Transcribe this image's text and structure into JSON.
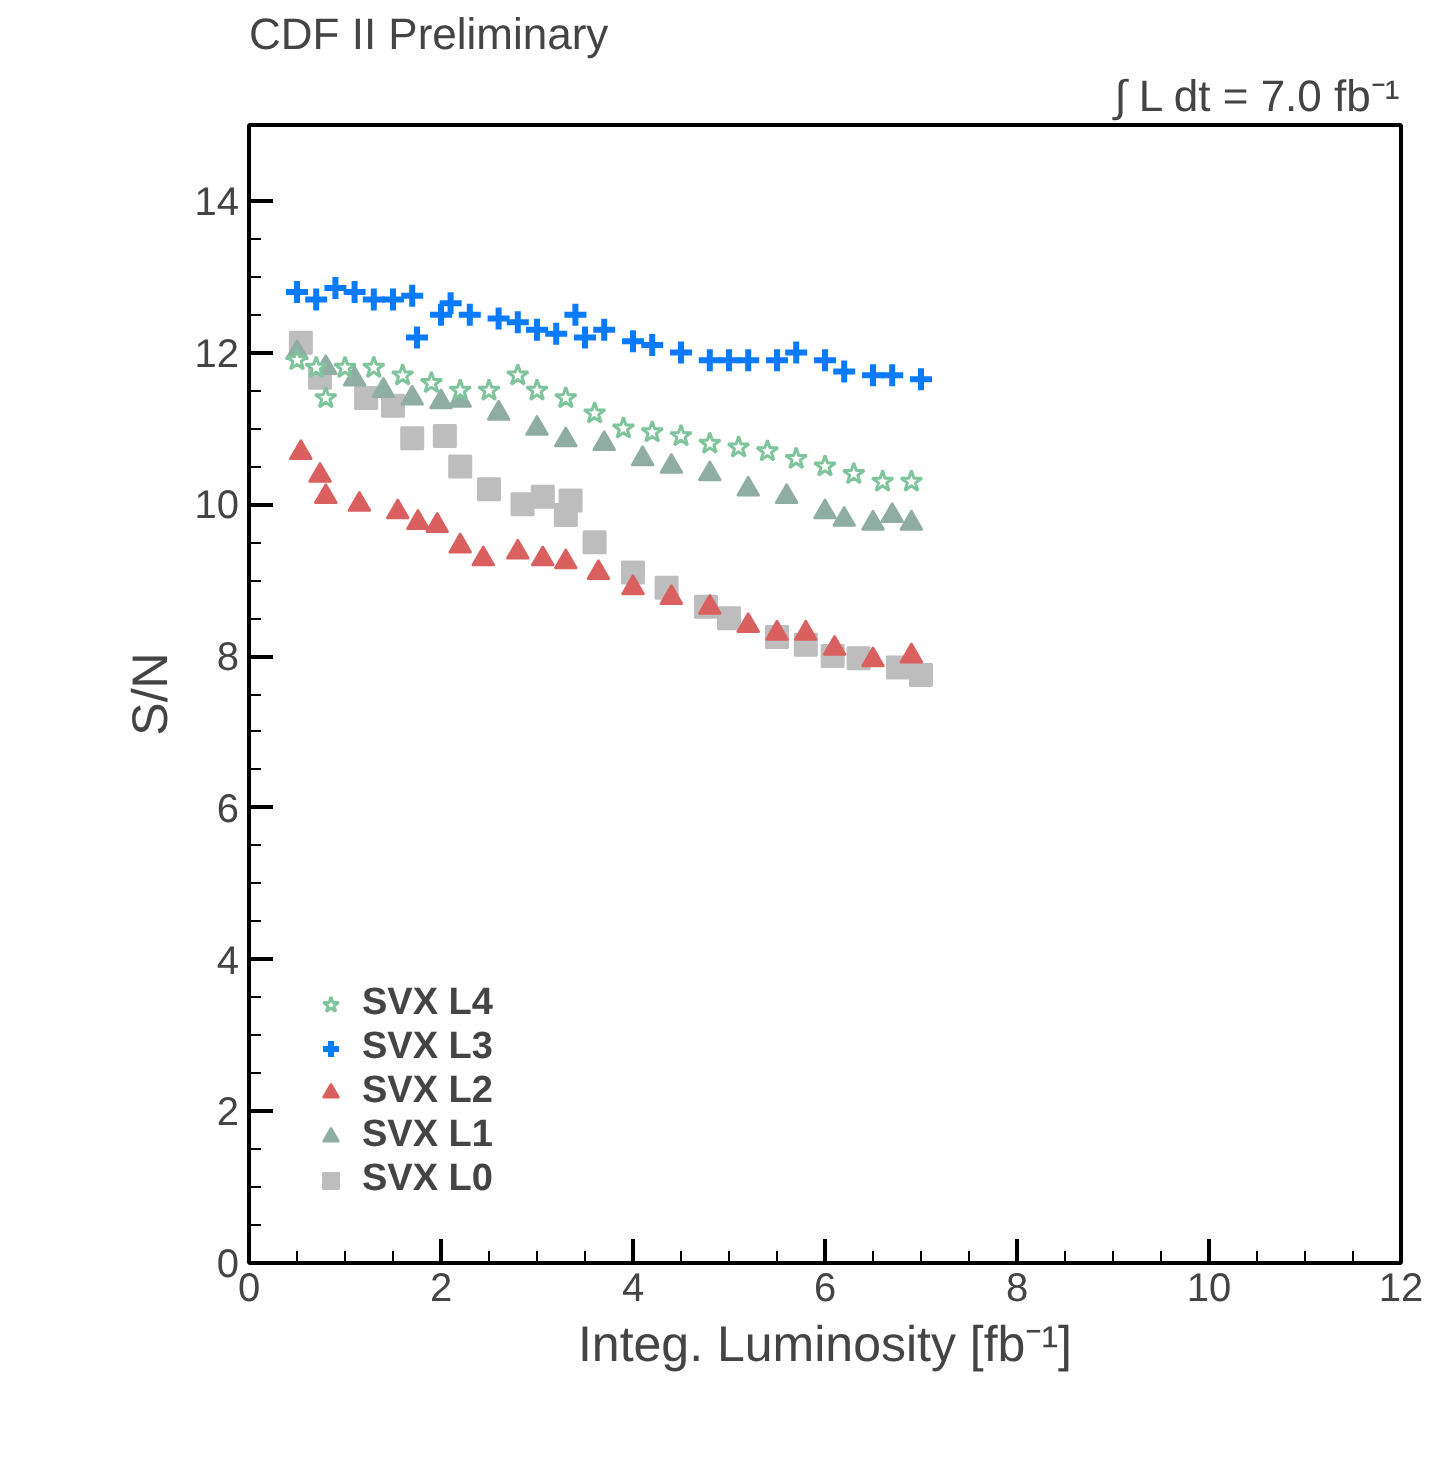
{
  "chart_data": {
    "type": "scatter",
    "title": "CDF II Preliminary",
    "xlabel": "Integ. Luminosity [fb⁻¹]",
    "ylabel": "S/N",
    "annotations": [
      "∫ L dt = 7.0 fb⁻¹"
    ],
    "xlim": [
      0,
      12
    ],
    "ylim": [
      0,
      15
    ],
    "xticks": [
      0,
      2,
      4,
      6,
      8,
      10,
      12
    ],
    "yticks": [
      0,
      2,
      4,
      6,
      8,
      10,
      12,
      14
    ],
    "grid": false,
    "legend": "bottom left",
    "series": [
      {
        "name": "SVX L4",
        "color": "#7fc49c",
        "marker": "star",
        "x": [
          0.5,
          0.7,
          0.8,
          1.0,
          1.3,
          1.6,
          1.9,
          2.2,
          2.5,
          2.8,
          3.0,
          3.3,
          3.6,
          3.9,
          4.2,
          4.5,
          4.8,
          5.1,
          5.4,
          5.7,
          6.0,
          6.3,
          6.6,
          6.9
        ],
        "values": [
          11.9,
          11.8,
          11.4,
          11.8,
          11.8,
          11.7,
          11.6,
          11.5,
          11.5,
          11.7,
          11.5,
          11.4,
          11.2,
          11.0,
          10.95,
          10.9,
          10.8,
          10.75,
          10.7,
          10.6,
          10.5,
          10.4,
          10.3,
          10.3
        ]
      },
      {
        "name": "SVX L3",
        "color": "#0a7bff",
        "marker": "cross",
        "x": [
          0.5,
          0.7,
          0.9,
          1.1,
          1.3,
          1.5,
          1.7,
          1.75,
          2.0,
          2.1,
          2.3,
          2.6,
          2.8,
          3.0,
          3.2,
          3.4,
          3.5,
          3.7,
          4.0,
          4.2,
          4.5,
          4.8,
          5.0,
          5.2,
          5.5,
          5.7,
          6.0,
          6.2,
          6.5,
          6.7,
          7.0
        ],
        "values": [
          12.8,
          12.7,
          12.85,
          12.8,
          12.7,
          12.7,
          12.75,
          12.2,
          12.5,
          12.65,
          12.5,
          12.45,
          12.4,
          12.3,
          12.25,
          12.5,
          12.2,
          12.3,
          12.15,
          12.1,
          12.0,
          11.9,
          11.9,
          11.9,
          11.9,
          12.0,
          11.9,
          11.75,
          11.7,
          11.7,
          11.65
        ]
      },
      {
        "name": "SVX L2",
        "color": "#d9605f",
        "marker": "triangle",
        "x": [
          0.54,
          0.74,
          0.8,
          1.15,
          1.55,
          1.76,
          1.96,
          2.2,
          2.44,
          2.8,
          3.06,
          3.3,
          3.64,
          4.0,
          4.4,
          4.8,
          5.2,
          5.5,
          5.8,
          6.1,
          6.5,
          6.9
        ],
        "values": [
          10.68,
          10.38,
          10.1,
          10.0,
          9.9,
          9.76,
          9.72,
          9.45,
          9.28,
          9.37,
          9.28,
          9.24,
          9.1,
          8.9,
          8.77,
          8.64,
          8.4,
          8.3,
          8.3,
          8.1,
          7.95,
          8.0
        ]
      },
      {
        "name": "SVX L1",
        "color": "#8fada3",
        "marker": "triangle",
        "x": [
          0.5,
          0.8,
          1.1,
          1.4,
          1.7,
          2.0,
          2.2,
          2.6,
          3.0,
          3.3,
          3.7,
          4.1,
          4.4,
          4.8,
          5.2,
          5.6,
          6.0,
          6.2,
          6.5,
          6.7,
          6.9
        ],
        "values": [
          12.0,
          11.8,
          11.65,
          11.5,
          11.4,
          11.35,
          11.37,
          11.2,
          11.0,
          10.85,
          10.8,
          10.6,
          10.5,
          10.4,
          10.2,
          10.1,
          9.9,
          9.8,
          9.75,
          9.85,
          9.75
        ]
      },
      {
        "name": "SVX L0",
        "color": "#bdbdbd",
        "marker": "square",
        "x": [
          0.54,
          0.74,
          1.22,
          1.5,
          1.7,
          2.04,
          2.2,
          2.5,
          2.85,
          3.06,
          3.3,
          3.35,
          3.6,
          4.0,
          4.35,
          4.76,
          5.0,
          5.5,
          5.8,
          6.08,
          6.35,
          6.76,
          7.0
        ],
        "values": [
          12.13,
          11.67,
          11.4,
          11.3,
          10.87,
          10.9,
          10.5,
          10.2,
          10.0,
          10.1,
          9.86,
          10.05,
          9.5,
          9.1,
          8.9,
          8.65,
          8.5,
          8.25,
          8.15,
          8.0,
          7.97,
          7.85,
          7.75
        ]
      }
    ]
  }
}
